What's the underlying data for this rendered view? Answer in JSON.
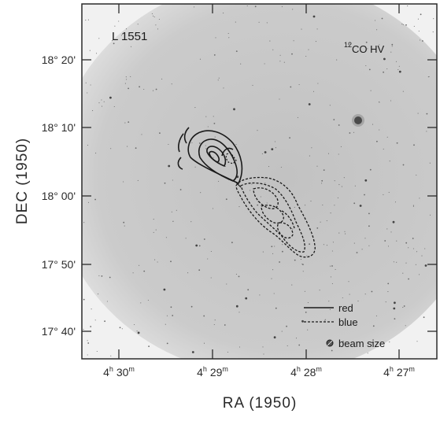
{
  "figure": {
    "panel_label": "L 1551",
    "molecule_label": {
      "superscript": "12",
      "text": "CO HV"
    },
    "x_axis": {
      "title": "RA (1950)",
      "ticks": [
        {
          "h": "4",
          "m": "30"
        },
        {
          "h": "4",
          "m": "29"
        },
        {
          "h": "4",
          "m": "28"
        },
        {
          "h": "4",
          "m": "27"
        }
      ]
    },
    "y_axis": {
      "title": "DEC (1950)",
      "ticks": [
        "18° 20'",
        "18° 10'",
        "18° 00'",
        "17° 50'",
        "17° 40'"
      ]
    },
    "legend": {
      "red": "red",
      "blue": "blue",
      "beam": "beam size"
    },
    "colors": {
      "plate_background": "#cdcdcd",
      "plate_edge": "#e9e9e9",
      "contour": "#1a1a1a",
      "frame": "#2a2a2a"
    }
  }
}
